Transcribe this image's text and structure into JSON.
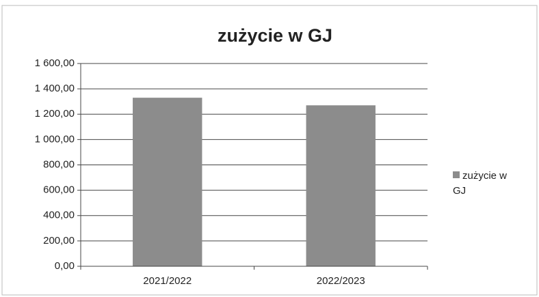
{
  "chart_data": {
    "type": "bar",
    "title": "zużycie w GJ",
    "categories": [
      "2021/2022",
      "2022/2023"
    ],
    "series": [
      {
        "name": "zużycie w GJ",
        "color": "#8c8c8c",
        "values": [
          1330,
          1270
        ]
      }
    ],
    "ylim": [
      0,
      1600
    ],
    "yticks": [
      {
        "value": 0,
        "label": "0,00"
      },
      {
        "value": 200,
        "label": "200,00"
      },
      {
        "value": 400,
        "label": "400,00"
      },
      {
        "value": 600,
        "label": "600,00"
      },
      {
        "value": 800,
        "label": "800,00"
      },
      {
        "value": 1000,
        "label": "1 000,00"
      },
      {
        "value": 1200,
        "label": "1 200,00"
      },
      {
        "value": 1400,
        "label": "1 400,00"
      },
      {
        "value": 1600,
        "label": "1 600,00"
      }
    ],
    "grid": true,
    "legend": "right"
  }
}
